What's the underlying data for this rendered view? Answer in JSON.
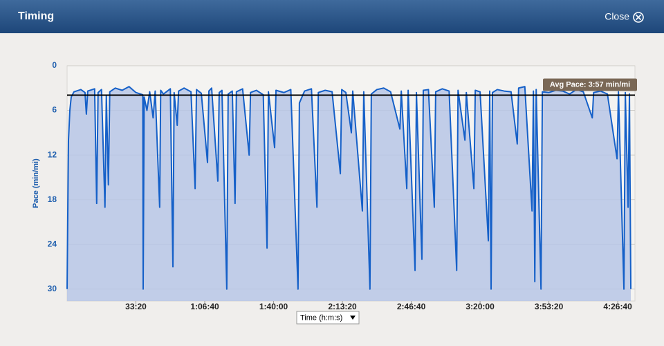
{
  "header": {
    "title": "Timing",
    "close": "Close"
  },
  "chart_data": {
    "type": "line",
    "y_label": "Pace (min/mi)",
    "x_selector": "Time (h:m:s)",
    "color": "#1560c8",
    "fill_color": "#b7c5e6",
    "ylim": [
      0,
      31.6
    ],
    "y_inverted": true,
    "yticks": [
      0,
      6,
      12,
      18,
      24,
      30
    ],
    "xlim": [
      0,
      16500
    ],
    "xticks": [
      {
        "value": 2000,
        "label": "33:20"
      },
      {
        "value": 4000,
        "label": "1:06:40"
      },
      {
        "value": 6000,
        "label": "1:40:00"
      },
      {
        "value": 8000,
        "label": "2:13:20"
      },
      {
        "value": 10000,
        "label": "2:46:40"
      },
      {
        "value": 12000,
        "label": "3:20:00"
      },
      {
        "value": 14000,
        "label": "3:53:20"
      },
      {
        "value": 16000,
        "label": "4:26:40"
      }
    ],
    "grid": true,
    "avg_line": {
      "value": 3.95,
      "label": "Avg Pace: 3:57 min/mi"
    },
    "x": [
      0,
      40,
      80,
      120,
      200,
      400,
      520,
      560,
      600,
      800,
      860,
      900,
      1000,
      1100,
      1140,
      1200,
      1240,
      1400,
      1600,
      1800,
      2000,
      2200,
      2210,
      2240,
      2320,
      2400,
      2500,
      2560,
      2690,
      2720,
      2800,
      3000,
      3075,
      3110,
      3200,
      3240,
      3400,
      3600,
      3720,
      3760,
      3900,
      4080,
      4120,
      4200,
      4380,
      4420,
      4500,
      4640,
      4680,
      4800,
      4880,
      4920,
      5100,
      5290,
      5330,
      5500,
      5700,
      5810,
      5850,
      6030,
      6070,
      6300,
      6500,
      6710,
      6750,
      6900,
      7100,
      7260,
      7300,
      7500,
      7700,
      7940,
      7980,
      8100,
      8260,
      8300,
      8580,
      8620,
      8800,
      8840,
      9000,
      9200,
      9400,
      9670,
      9710,
      9870,
      9910,
      10110,
      10150,
      10310,
      10350,
      10500,
      10670,
      10710,
      10900,
      11100,
      11320,
      11360,
      11560,
      11600,
      11820,
      11860,
      12000,
      12240,
      12280,
      12320,
      12360,
      12500,
      12700,
      12900,
      13080,
      13120,
      13300,
      13510,
      13550,
      13590,
      13630,
      13770,
      13810,
      14000,
      14200,
      14400,
      14600,
      14800,
      15000,
      15260,
      15300,
      15500,
      15700,
      15980,
      16020,
      16180,
      16220,
      16300,
      16340,
      16380
    ],
    "values": [
      30,
      10,
      6,
      4.2,
      3.5,
      3.2,
      3.6,
      6.5,
      3.4,
      3.1,
      18.5,
      3.6,
      3.2,
      19,
      4,
      16,
      3.5,
      3.0,
      3.3,
      2.8,
      3.6,
      3.9,
      30,
      4.2,
      6,
      3.5,
      7,
      3.4,
      19,
      3.3,
      3.8,
      3.1,
      27,
      3.6,
      8,
      3.4,
      3.0,
      3.5,
      16.5,
      3.2,
      3.7,
      13,
      3.4,
      3.0,
      15.5,
      3.6,
      3.3,
      30,
      3.8,
      3.4,
      18.5,
      3.5,
      3.1,
      12,
      3.6,
      3.3,
      3.9,
      24.5,
      3.5,
      11,
      3.3,
      3.6,
      3.2,
      30,
      5,
      3.4,
      3.1,
      19,
      3.6,
      3.3,
      3.5,
      14.5,
      3.2,
      3.6,
      9,
      3.4,
      19.5,
      3.5,
      30,
      3.8,
      3.2,
      3.0,
      3.5,
      8.5,
      3.4,
      16.5,
      3.3,
      27.5,
      3.6,
      26,
      3.3,
      3.2,
      19,
      3.5,
      3.1,
      3.4,
      27.5,
      3.3,
      10,
      3.6,
      16.5,
      3.3,
      3.5,
      23.5,
      3.4,
      30,
      3.6,
      3.2,
      3.4,
      3.5,
      10.5,
      3.0,
      2.8,
      19.5,
      3.4,
      29,
      3.2,
      30,
      3.5,
      3.6,
      3.3,
      3.4,
      3.8,
      3.2,
      3.5,
      7,
      3.6,
      3.4,
      3.8,
      12.5,
      3.5,
      30,
      3.6,
      19,
      3.8,
      30
    ]
  }
}
